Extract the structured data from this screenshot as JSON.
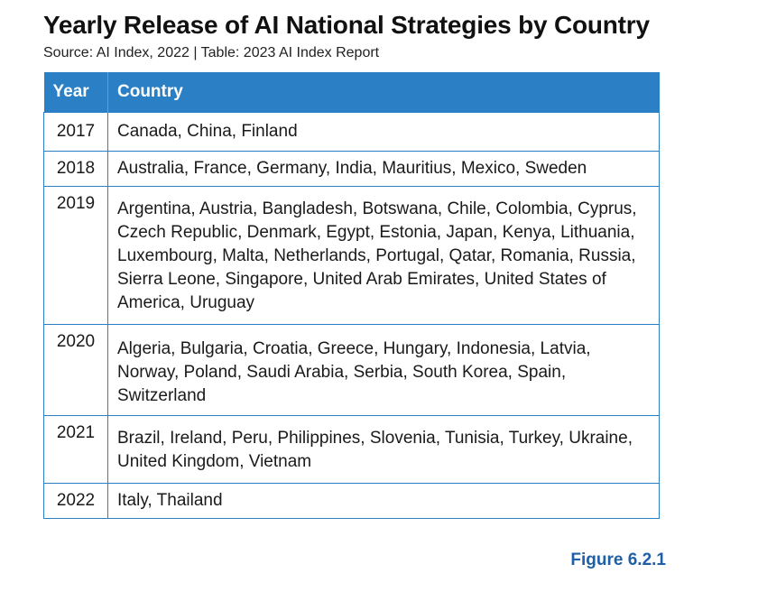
{
  "title": "Yearly Release of AI National Strategies by Country",
  "subtitle": "Source: AI Index, 2022 | Table: 2023 AI Index Report",
  "table": {
    "headers": [
      "Year",
      "Country"
    ],
    "rows": [
      {
        "year": "2017",
        "countries": "Canada, China, Finland"
      },
      {
        "year": "2018",
        "countries": "Australia, France, Germany, India, Mauritius, Mexico, Sweden"
      },
      {
        "year": "2019",
        "countries": "Argentina, Austria, Bangladesh, Botswana, Chile, Colombia, Cyprus, Czech Republic, Denmark, Egypt, Estonia, Japan, Kenya, Lithuania, Luxembourg, Malta, Netherlands, Portugal, Qatar, Romania, Russia, Sierra Leone, Singapore, United Arab Emirates, United States of America, Uruguay"
      },
      {
        "year": "2020",
        "countries": "Algeria, Bulgaria, Croatia, Greece, Hungary, Indonesia, Latvia, Norway, Poland, Saudi Arabia, Serbia, South Korea, Spain, Switzerland"
      },
      {
        "year": "2021",
        "countries": "Brazil, Ireland, Peru, Philippines, Slovenia, Tunisia, Turkey, Ukraine, United Kingdom, Vietnam"
      },
      {
        "year": "2022",
        "countries": "Italy, Thailand"
      }
    ]
  },
  "figure_label": "Figure 6.2.1",
  "colors": {
    "header_bg": "#2a7fc5",
    "border": "#2a7fc5",
    "figure_label": "#1f5fa8"
  }
}
